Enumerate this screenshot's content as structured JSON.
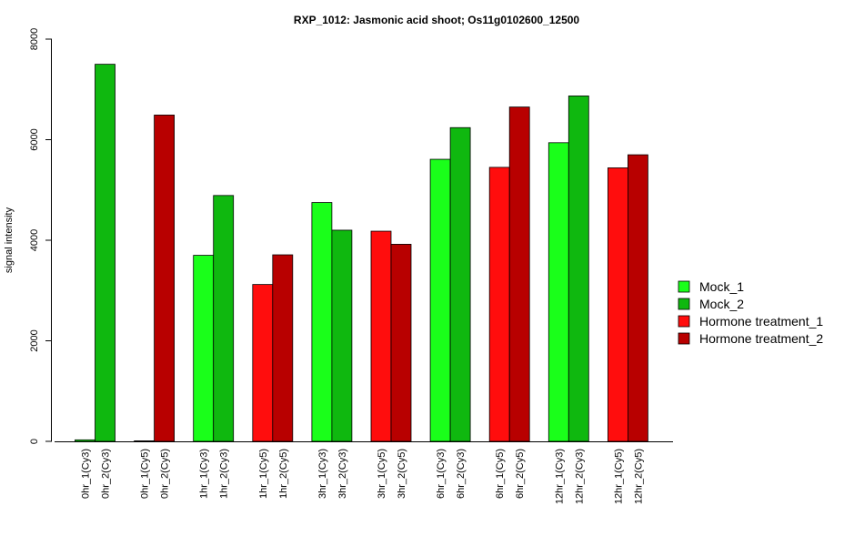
{
  "chart_data": {
    "type": "bar",
    "title": "RXP_1012: Jasmonic acid shoot; Os11g0102600_12500",
    "xlabel": "",
    "ylabel": "signal intensity",
    "ylim": [
      0,
      8000
    ],
    "yticks": [
      0,
      2000,
      4000,
      6000,
      8000
    ],
    "grid": false,
    "legend_position": "right",
    "categories": [
      "0hr_1(Cy3)",
      "0hr_2(Cy3)",
      "0hr_1(Cy5)",
      "0hr_2(Cy5)",
      "1hr_1(Cy3)",
      "1hr_2(Cy3)",
      "1hr_1(Cy5)",
      "1hr_2(Cy5)",
      "3hr_1(Cy3)",
      "3hr_2(Cy3)",
      "3hr_1(Cy5)",
      "3hr_2(Cy5)",
      "6hr_1(Cy3)",
      "6hr_2(Cy3)",
      "6hr_1(Cy5)",
      "6hr_2(Cy5)",
      "12hr_1(Cy3)",
      "12hr_2(Cy3)",
      "12hr_1(Cy5)",
      "12hr_2(Cy5)"
    ],
    "values": [
      30,
      7500,
      10,
      6490,
      3700,
      4890,
      3120,
      3710,
      4750,
      4200,
      4180,
      3920,
      5610,
      6240,
      5450,
      6650,
      5940,
      6870,
      5440,
      5700
    ],
    "bar_series": [
      0,
      1,
      2,
      3,
      0,
      1,
      2,
      3,
      0,
      1,
      2,
      3,
      0,
      1,
      2,
      3,
      0,
      1,
      2,
      3
    ],
    "series": [
      {
        "name": "Mock_1",
        "color": "#1aff1a"
      },
      {
        "name": "Mock_2",
        "color": "#0fb80f"
      },
      {
        "name": "Hormone treatment_1",
        "color": "#ff0d0d"
      },
      {
        "name": "Hormone treatment_2",
        "color": "#b80000"
      }
    ]
  }
}
